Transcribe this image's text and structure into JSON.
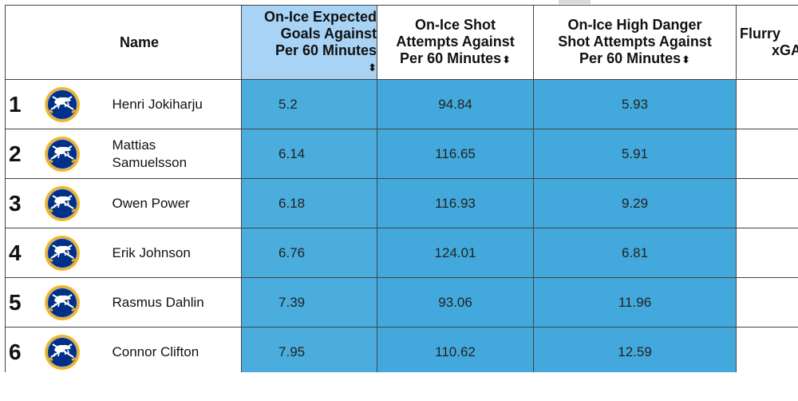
{
  "table": {
    "headers": {
      "name": "Name",
      "xga_line1": "On-Ice Expected",
      "xga_line2": "Goals Against",
      "xga_line3": "Per 60 Minutes",
      "sa_line1": "On-Ice Shot",
      "sa_line2": "Attempts Against",
      "sa_line3": "Per 60 Minutes",
      "hd_line1": "On-Ice High Danger",
      "hd_line2": "Shot Attempts Against",
      "hd_line3": "Per 60 Minutes",
      "flurry_line1": "Flurry",
      "flurry_line2": "xGA"
    },
    "sort_glyph": "⬍",
    "rows": [
      {
        "rank": "1",
        "name_line1": "Henri Jokiharju",
        "name_line2": "",
        "xga": "5.2",
        "sa": "94.84",
        "hd": "5.93"
      },
      {
        "rank": "2",
        "name_line1": "Mattias",
        "name_line2": "Samuelsson",
        "xga": "6.14",
        "sa": "116.65",
        "hd": "5.91"
      },
      {
        "rank": "3",
        "name_line1": "Owen Power",
        "name_line2": "",
        "xga": "6.18",
        "sa": "116.93",
        "hd": "9.29"
      },
      {
        "rank": "4",
        "name_line1": "Erik Johnson",
        "name_line2": "",
        "xga": "6.76",
        "sa": "124.01",
        "hd": "6.81"
      },
      {
        "rank": "5",
        "name_line1": "Rasmus Dahlin",
        "name_line2": "",
        "xga": "7.39",
        "sa": "93.06",
        "hd": "11.96"
      },
      {
        "rank": "6",
        "name_line1": "Connor Clifton",
        "name_line2": "",
        "xga": "7.95",
        "sa": "110.62",
        "hd": "12.59"
      }
    ],
    "icons": {
      "team_logo": "sabres-logo-icon",
      "sort": "sort-icon"
    },
    "colors": {
      "sorted_header": "#a9d3f5",
      "value_cell": "#43a9dc",
      "logo_navy": "#003087",
      "logo_gold": "#fcb514",
      "logo_silver": "#adafaa"
    }
  }
}
